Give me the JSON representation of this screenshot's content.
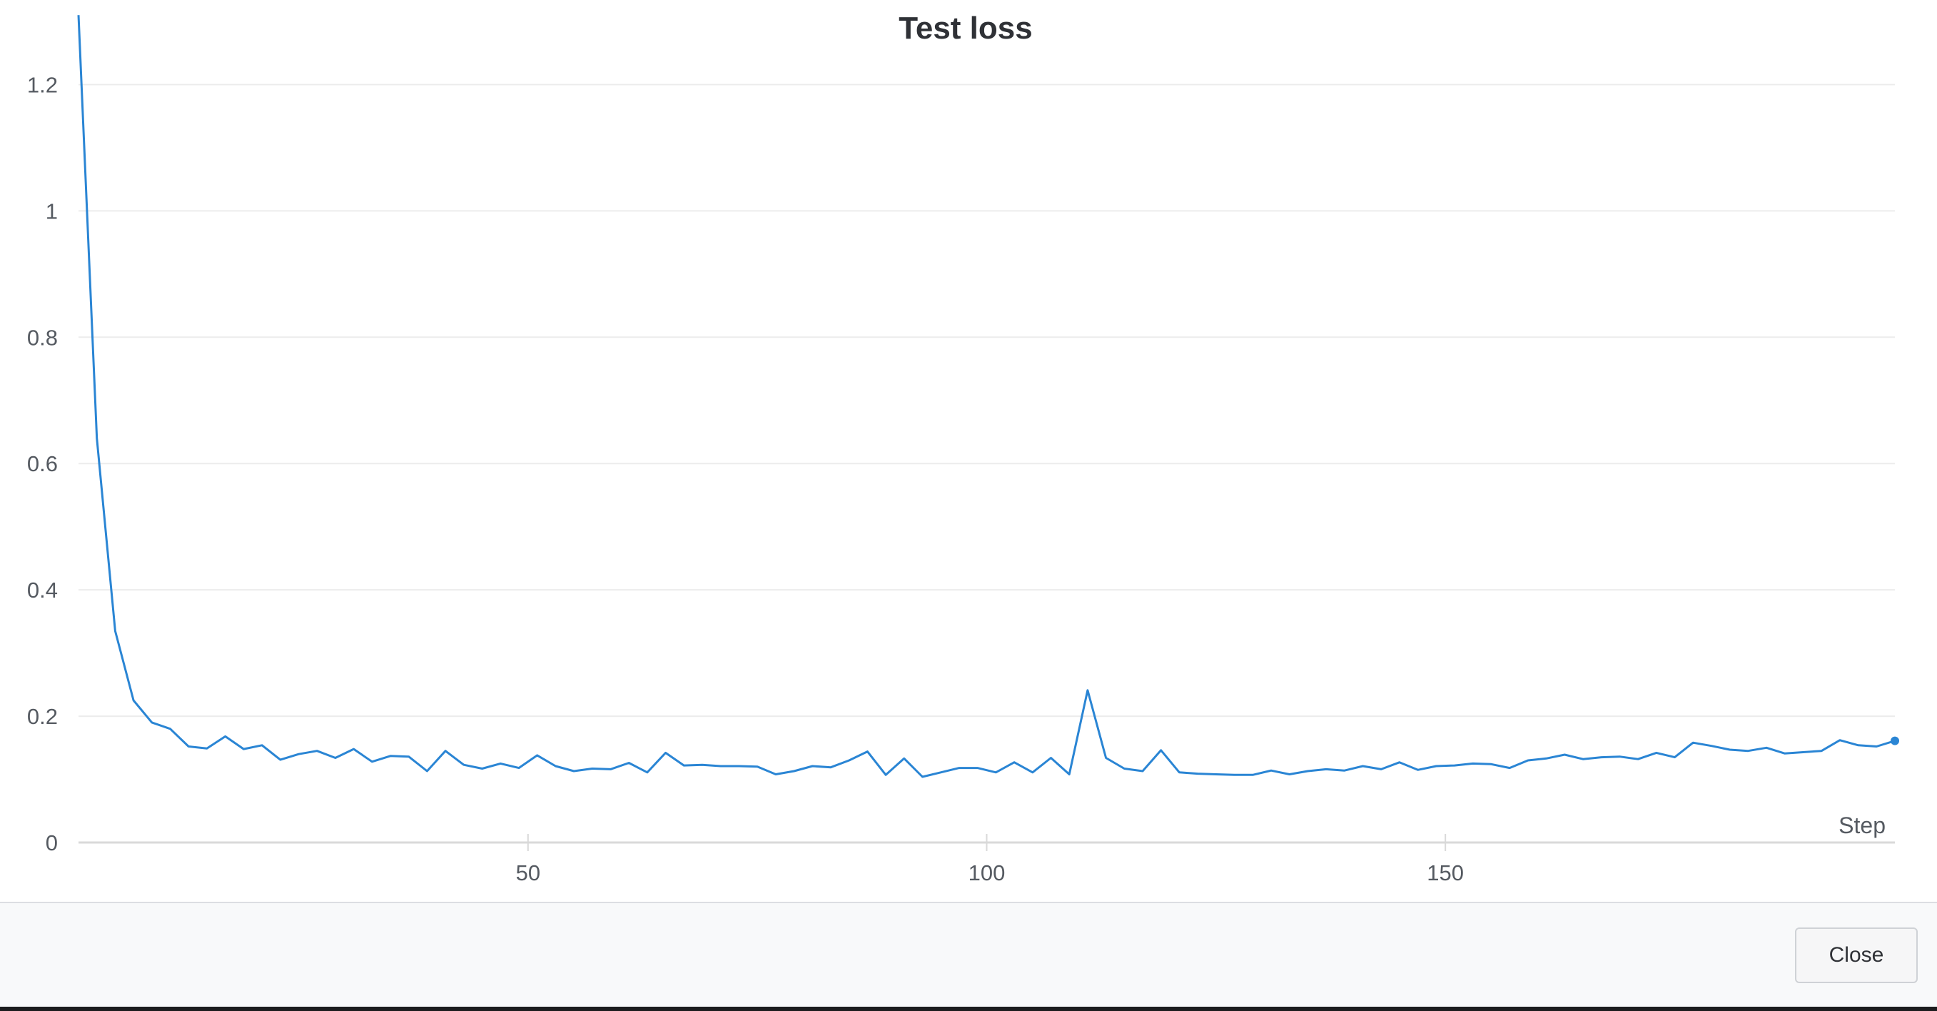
{
  "dialog": {
    "close_label": "Close"
  },
  "colors": {
    "series": "#2a85d4",
    "grid": "#ececec",
    "axis": "#d9d9d9",
    "tick_text": "#555a61",
    "title": "#2f3136"
  },
  "chart_data": {
    "type": "line",
    "title": "Test loss",
    "xlabel": "Step",
    "ylabel": "",
    "xlim": [
      1,
      199
    ],
    "ylim": [
      0,
      1.3
    ],
    "x_ticks": [
      50,
      100,
      150
    ],
    "y_ticks": [
      0,
      0.2,
      0.4,
      0.6,
      0.8,
      1,
      1.2
    ],
    "y_tick_labels": [
      "0",
      "0.2",
      "0.4",
      "0.6",
      "0.8",
      "1",
      "1.2"
    ],
    "x_tick_labels": [
      "50",
      "100",
      "150"
    ],
    "grid": true,
    "legend": "none",
    "series": [
      {
        "x": [
          1,
          3,
          5,
          7,
          9,
          11,
          13,
          15,
          17,
          19,
          21,
          23,
          25,
          27,
          29,
          31,
          33,
          35,
          37,
          39,
          41,
          43,
          45,
          47,
          49,
          51,
          53,
          55,
          57,
          59,
          61,
          63,
          65,
          67,
          69,
          71,
          73,
          75,
          77,
          79,
          81,
          83,
          85,
          87,
          89,
          91,
          93,
          95,
          97,
          99,
          101,
          103,
          105,
          107,
          109,
          111,
          113,
          115,
          117,
          119,
          121,
          123,
          125,
          127,
          129,
          131,
          133,
          135,
          137,
          139,
          141,
          143,
          145,
          147,
          149,
          151,
          153,
          155,
          157,
          159,
          161,
          163,
          165,
          167,
          169,
          171,
          173,
          175,
          177,
          179,
          181,
          183,
          185,
          187,
          189,
          191,
          193,
          195,
          197,
          199
        ],
        "values": [
          1.31,
          0.64,
          0.335,
          0.225,
          0.19,
          0.18,
          0.152,
          0.149,
          0.168,
          0.148,
          0.154,
          0.131,
          0.14,
          0.145,
          0.134,
          0.148,
          0.128,
          0.137,
          0.136,
          0.113,
          0.145,
          0.123,
          0.117,
          0.125,
          0.118,
          0.138,
          0.121,
          0.113,
          0.117,
          0.116,
          0.126,
          0.111,
          0.142,
          0.122,
          0.123,
          0.121,
          0.121,
          0.12,
          0.108,
          0.113,
          0.121,
          0.119,
          0.13,
          0.144,
          0.107,
          0.133,
          0.104,
          0.111,
          0.118,
          0.118,
          0.111,
          0.127,
          0.111,
          0.134,
          0.108,
          0.241,
          0.134,
          0.117,
          0.113,
          0.146,
          0.111,
          0.109,
          0.108,
          0.107,
          0.107,
          0.114,
          0.108,
          0.113,
          0.116,
          0.114,
          0.121,
          0.116,
          0.127,
          0.115,
          0.121,
          0.122,
          0.125,
          0.124,
          0.118,
          0.13,
          0.133,
          0.139,
          0.132,
          0.135,
          0.136,
          0.132,
          0.142,
          0.135,
          0.158,
          0.153,
          0.147,
          0.145,
          0.15,
          0.141,
          0.143,
          0.145,
          0.162,
          0.154,
          0.152,
          0.161
        ]
      }
    ]
  }
}
